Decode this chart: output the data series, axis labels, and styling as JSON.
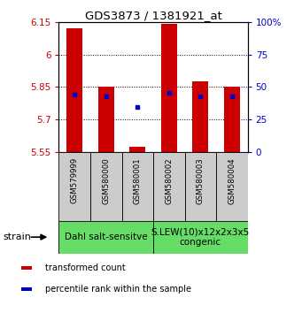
{
  "title": "GDS3873 / 1381921_at",
  "samples": [
    "GSM579999",
    "GSM580000",
    "GSM580001",
    "GSM580002",
    "GSM580003",
    "GSM580004"
  ],
  "bar_bottoms": [
    5.55,
    5.55,
    5.55,
    5.55,
    5.55,
    5.55
  ],
  "bar_tops": [
    6.12,
    5.85,
    5.575,
    6.14,
    5.875,
    5.85
  ],
  "blue_values": [
    5.815,
    5.805,
    5.758,
    5.822,
    5.808,
    5.805
  ],
  "ylim": [
    5.55,
    6.15
  ],
  "yticks": [
    5.55,
    5.7,
    5.85,
    6.0,
    6.15
  ],
  "ytick_labels": [
    "5.55",
    "5.7",
    "5.85",
    "6",
    "6.15"
  ],
  "right_yticks_pct": [
    0,
    25,
    50,
    75,
    100
  ],
  "right_ytick_labels": [
    "0",
    "25",
    "50",
    "75",
    "100%"
  ],
  "group1_label": "Dahl salt-sensitve",
  "group2_label": "S.LEW(10)x12x2x3x5\ncongenic",
  "group_color": "#66dd66",
  "bar_color": "#cc0000",
  "blue_color": "#0000cc",
  "tick_color_left": "#cc0000",
  "tick_color_right": "#0000cc",
  "sample_box_color": "#cccccc",
  "legend_items": [
    {
      "color": "#cc0000",
      "label": "transformed count"
    },
    {
      "color": "#0000cc",
      "label": "percentile rank within the sample"
    }
  ]
}
